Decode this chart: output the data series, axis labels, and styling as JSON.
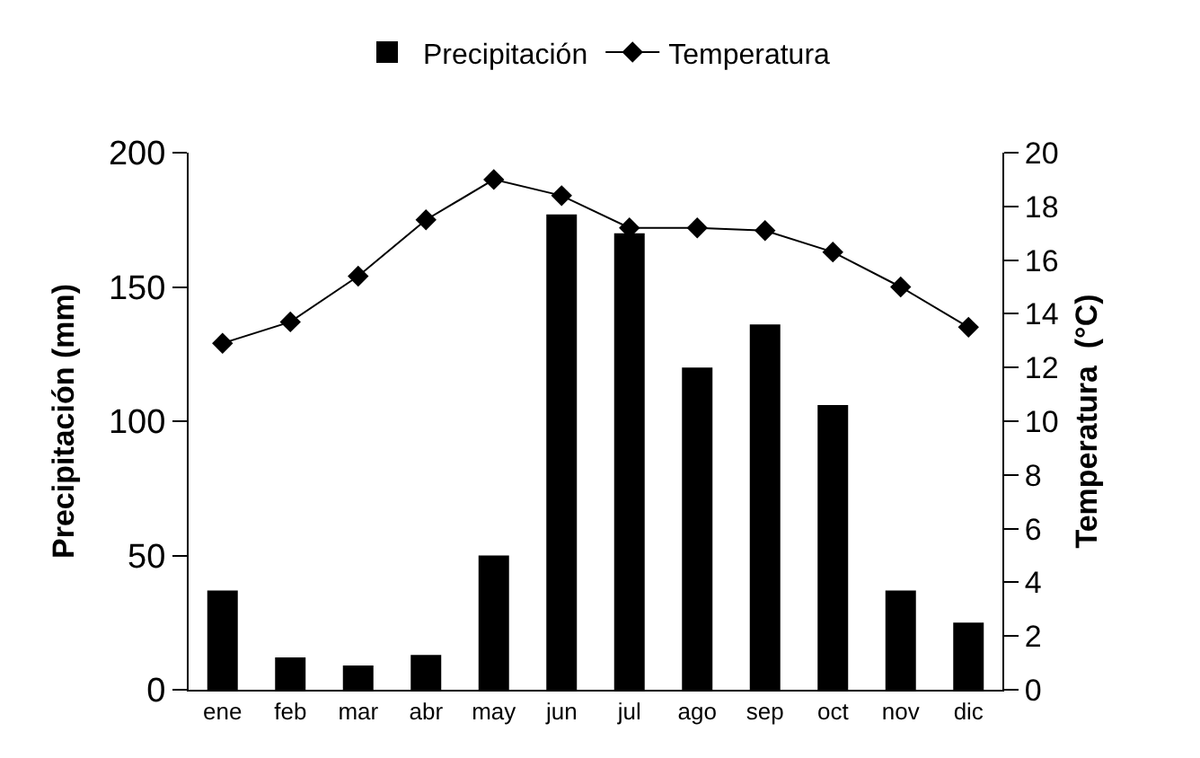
{
  "chart_data": {
    "type": "bar",
    "categories": [
      "ene",
      "feb",
      "mar",
      "abr",
      "may",
      "jun",
      "jul",
      "ago",
      "sep",
      "oct",
      "nov",
      "dic"
    ],
    "series": [
      {
        "name": "Precipitación",
        "color": "#000000",
        "values": [
          37,
          12,
          9,
          13,
          50,
          177,
          170,
          120,
          136,
          106,
          37,
          25
        ]
      },
      {
        "name": "Temperatura",
        "type": "line",
        "axis": "y2",
        "color": "#000000",
        "marker": "diamond",
        "values": [
          12.9,
          13.7,
          15.4,
          17.5,
          19.0,
          18.4,
          17.2,
          17.2,
          17.1,
          16.3,
          15.0,
          13.5
        ]
      }
    ],
    "ylabel": "Precipitación (mm)",
    "y2label": "Temperatura  (°C)",
    "ylim": [
      0,
      200
    ],
    "yticks": [
      0,
      50,
      100,
      150,
      200
    ],
    "y2lim": [
      0,
      20
    ],
    "y2ticks": [
      0,
      2,
      4,
      6,
      8,
      10,
      12,
      14,
      16,
      18,
      20
    ],
    "grid": false,
    "legend": "top"
  }
}
